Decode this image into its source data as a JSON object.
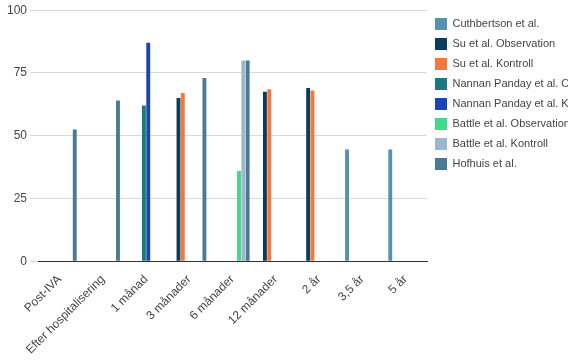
{
  "chart_data": {
    "type": "bar",
    "categories": [
      "Post-IVA",
      "Efter hospitalisering",
      "1 månad",
      "3 månader",
      "6 månader",
      "12 månader",
      "2 år",
      "3,5 år",
      "5 år"
    ],
    "series": [
      {
        "name": "Cuthbertson et al.",
        "color": "#5592b0",
        "values": [
          null,
          null,
          null,
          null,
          null,
          null,
          null,
          44.5,
          44.5
        ]
      },
      {
        "name": "Su et al. Observation",
        "color": "#0b3d5a",
        "values": [
          null,
          null,
          null,
          65,
          null,
          67.5,
          69,
          null,
          null
        ]
      },
      {
        "name": "Su et al. Kontroll",
        "color": "#f4783b",
        "values": [
          null,
          null,
          null,
          67,
          null,
          68.5,
          68,
          null,
          null
        ]
      },
      {
        "name": "Nannan Panday et al. Observation",
        "color": "#1a7a80",
        "values": [
          null,
          null,
          62,
          null,
          null,
          null,
          null,
          null,
          null
        ]
      },
      {
        "name": "Nannan Panday et al. Kontroll",
        "color": "#1a44b8",
        "values": [
          null,
          null,
          87,
          null,
          null,
          null,
          null,
          null,
          null
        ]
      },
      {
        "name": "Battle et al. Observation",
        "color": "#42d98a",
        "values": [
          null,
          null,
          null,
          null,
          36,
          null,
          null,
          null,
          null
        ]
      },
      {
        "name": "Battle et al. Kontroll",
        "color": "#9ab8d0",
        "values": [
          null,
          null,
          null,
          null,
          80,
          null,
          null,
          null,
          null
        ]
      },
      {
        "name": "Hofhuis et al.",
        "color": "#4b7b93",
        "values": [
          52.5,
          64,
          null,
          73,
          80,
          null,
          null,
          null,
          null
        ]
      }
    ],
    "ylim": [
      0,
      100
    ],
    "yticks": [
      0,
      25,
      50,
      75,
      100
    ],
    "grid": true,
    "legend": "right"
  }
}
